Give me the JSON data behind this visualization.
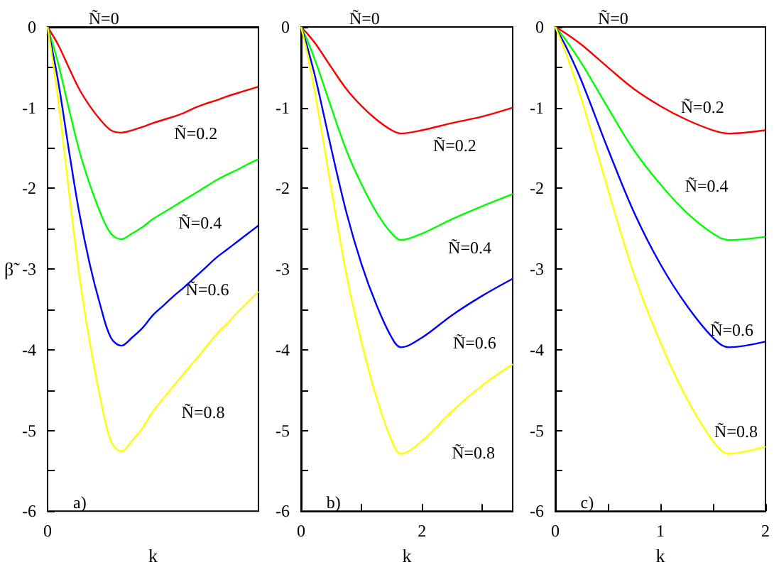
{
  "chart_data": [
    {
      "type": "line",
      "xlabel": "k",
      "ylabel": "β̃",
      "categories": [
        "0",
        null,
        null,
        null,
        null,
        null,
        null,
        null,
        null,
        null,
        null,
        null,
        null,
        null,
        null,
        null,
        null,
        null,
        null,
        null,
        null
      ],
      "ylim": [
        -6,
        0
      ],
      "yticks": [
        0,
        {
          "value": -0.5,
          "label": null
        },
        -1,
        {
          "value": -1.5,
          "label": null
        },
        -2,
        {
          "value": -2.5,
          "label": null
        },
        -3,
        {
          "value": -3.5,
          "label": null
        },
        -4,
        {
          "value": -4.5,
          "label": null
        },
        -5,
        {
          "value": -5.5,
          "label": null
        },
        -6
      ],
      "grid": false,
      "legend": false,
      "marker": "none",
      "line_style": "solid",
      "series": [
        {
          "name": "Ñ=0.2",
          "color": "#ff0000",
          "values": [
            0,
            -0.22,
            -0.5,
            -0.77,
            -0.98,
            -1.15,
            -1.28,
            -1.31,
            -1.28,
            -1.24,
            -1.19,
            -1.15,
            -1.11,
            -1.06,
            -1.0,
            -0.95,
            -0.91,
            -0.86,
            -0.82,
            -0.78,
            -0.74
          ]
        },
        {
          "name": "Ñ=0.4",
          "color": "#00ff00",
          "values": [
            0,
            -0.45,
            -1.0,
            -1.53,
            -1.95,
            -2.3,
            -2.56,
            -2.63,
            -2.56,
            -2.48,
            -2.38,
            -2.3,
            -2.22,
            -2.14,
            -2.06,
            -1.98,
            -1.9,
            -1.83,
            -1.77,
            -1.7,
            -1.64
          ]
        },
        {
          "name": "Ñ=0.6",
          "color": "#0000ff",
          "values": [
            0,
            -0.67,
            -1.51,
            -2.3,
            -2.94,
            -3.45,
            -3.85,
            -3.95,
            -3.85,
            -3.73,
            -3.57,
            -3.45,
            -3.33,
            -3.22,
            -3.1,
            -2.98,
            -2.86,
            -2.76,
            -2.66,
            -2.56,
            -2.46
          ]
        },
        {
          "name": "Ñ=0.8",
          "color": "#ffff00",
          "values": [
            0,
            -0.9,
            -2.01,
            -3.07,
            -3.91,
            -4.6,
            -5.13,
            -5.26,
            -5.13,
            -4.97,
            -4.76,
            -4.6,
            -4.44,
            -4.28,
            -4.13,
            -3.97,
            -3.81,
            -3.68,
            -3.54,
            -3.41,
            -3.28
          ]
        }
      ],
      "annotations": [
        "Ñ=0",
        "a)"
      ]
    },
    {
      "type": "line",
      "xlabel": "k",
      "xlim": [
        0,
        3.5
      ],
      "xticks": [
        0,
        {
          "value": 1,
          "label": null
        },
        2,
        {
          "value": 3,
          "label": null
        }
      ],
      "ylim": [
        -6,
        0
      ],
      "yticks": [
        0,
        {
          "value": -0.5,
          "label": null
        },
        -1,
        {
          "value": -1.5,
          "label": null
        },
        -2,
        {
          "value": -2.5,
          "label": null
        },
        -3,
        {
          "value": -3.5,
          "label": null
        },
        -4,
        {
          "value": -4.5,
          "label": null
        },
        -5,
        {
          "value": -5.5,
          "label": null
        },
        -6
      ],
      "grid": false,
      "legend": false,
      "marker": "none",
      "line_style": "solid",
      "x": [
        0,
        0.1,
        0.25,
        0.5,
        0.75,
        1,
        1.25,
        1.5,
        1.65,
        2,
        2.5,
        3,
        3.5
      ],
      "series": [
        {
          "name": "Ñ=0.2",
          "color": "#ff0000",
          "values": [
            0,
            -0.08,
            -0.22,
            -0.5,
            -0.77,
            -0.98,
            -1.15,
            -1.28,
            -1.32,
            -1.28,
            -1.19,
            -1.11,
            -1.0
          ]
        },
        {
          "name": "Ñ=0.4",
          "color": "#00ff00",
          "values": [
            0,
            -0.16,
            -0.45,
            -1.0,
            -1.53,
            -1.95,
            -2.3,
            -2.56,
            -2.64,
            -2.56,
            -2.38,
            -2.22,
            -2.07
          ]
        },
        {
          "name": "Ñ=0.6",
          "color": "#0000ff",
          "values": [
            0,
            -0.24,
            -0.67,
            -1.51,
            -2.3,
            -2.94,
            -3.45,
            -3.85,
            -3.97,
            -3.85,
            -3.57,
            -3.33,
            -3.12
          ]
        },
        {
          "name": "Ñ=0.8",
          "color": "#ffff00",
          "values": [
            0,
            -0.32,
            -0.9,
            -2.01,
            -3.07,
            -3.91,
            -4.6,
            -5.13,
            -5.29,
            -5.13,
            -4.76,
            -4.44,
            -4.18
          ]
        }
      ],
      "annotations": [
        "Ñ=0",
        "b)"
      ]
    },
    {
      "type": "line",
      "xlabel": "k",
      "xlim": [
        0,
        2
      ],
      "xticks": [
        0,
        {
          "value": 0.5,
          "label": null
        },
        1,
        {
          "value": 1.5,
          "label": null
        },
        2
      ],
      "ylim": [
        -6,
        0
      ],
      "yticks": [
        0,
        {
          "value": -0.5,
          "label": null
        },
        -1,
        {
          "value": -1.5,
          "label": null
        },
        -2,
        {
          "value": -2.5,
          "label": null
        },
        -3,
        {
          "value": -3.5,
          "label": null
        },
        -4,
        {
          "value": -4.5,
          "label": null
        },
        -5,
        {
          "value": -5.5,
          "label": null
        },
        -6
      ],
      "grid": false,
      "legend": false,
      "marker": "none",
      "line_style": "solid",
      "x": [
        0,
        0.1,
        0.25,
        0.5,
        0.75,
        1,
        1.25,
        1.5,
        1.65,
        2
      ],
      "series": [
        {
          "name": "Ñ=0.2",
          "color": "#ff0000",
          "values": [
            0,
            -0.08,
            -0.22,
            -0.5,
            -0.77,
            -0.98,
            -1.15,
            -1.28,
            -1.32,
            -1.28
          ]
        },
        {
          "name": "Ñ=0.4",
          "color": "#00ff00",
          "values": [
            0,
            -0.16,
            -0.45,
            -1.0,
            -1.53,
            -1.95,
            -2.3,
            -2.56,
            -2.64,
            -2.6
          ]
        },
        {
          "name": "Ñ=0.6",
          "color": "#0000ff",
          "values": [
            0,
            -0.24,
            -0.67,
            -1.51,
            -2.3,
            -2.94,
            -3.45,
            -3.85,
            -3.97,
            -3.9
          ]
        },
        {
          "name": "Ñ=0.8",
          "color": "#ffff00",
          "values": [
            0,
            -0.32,
            -0.9,
            -2.01,
            -3.07,
            -3.91,
            -4.6,
            -5.13,
            -5.29,
            -5.2
          ]
        }
      ],
      "annotations": [
        "Ñ=0",
        "c)"
      ]
    }
  ]
}
